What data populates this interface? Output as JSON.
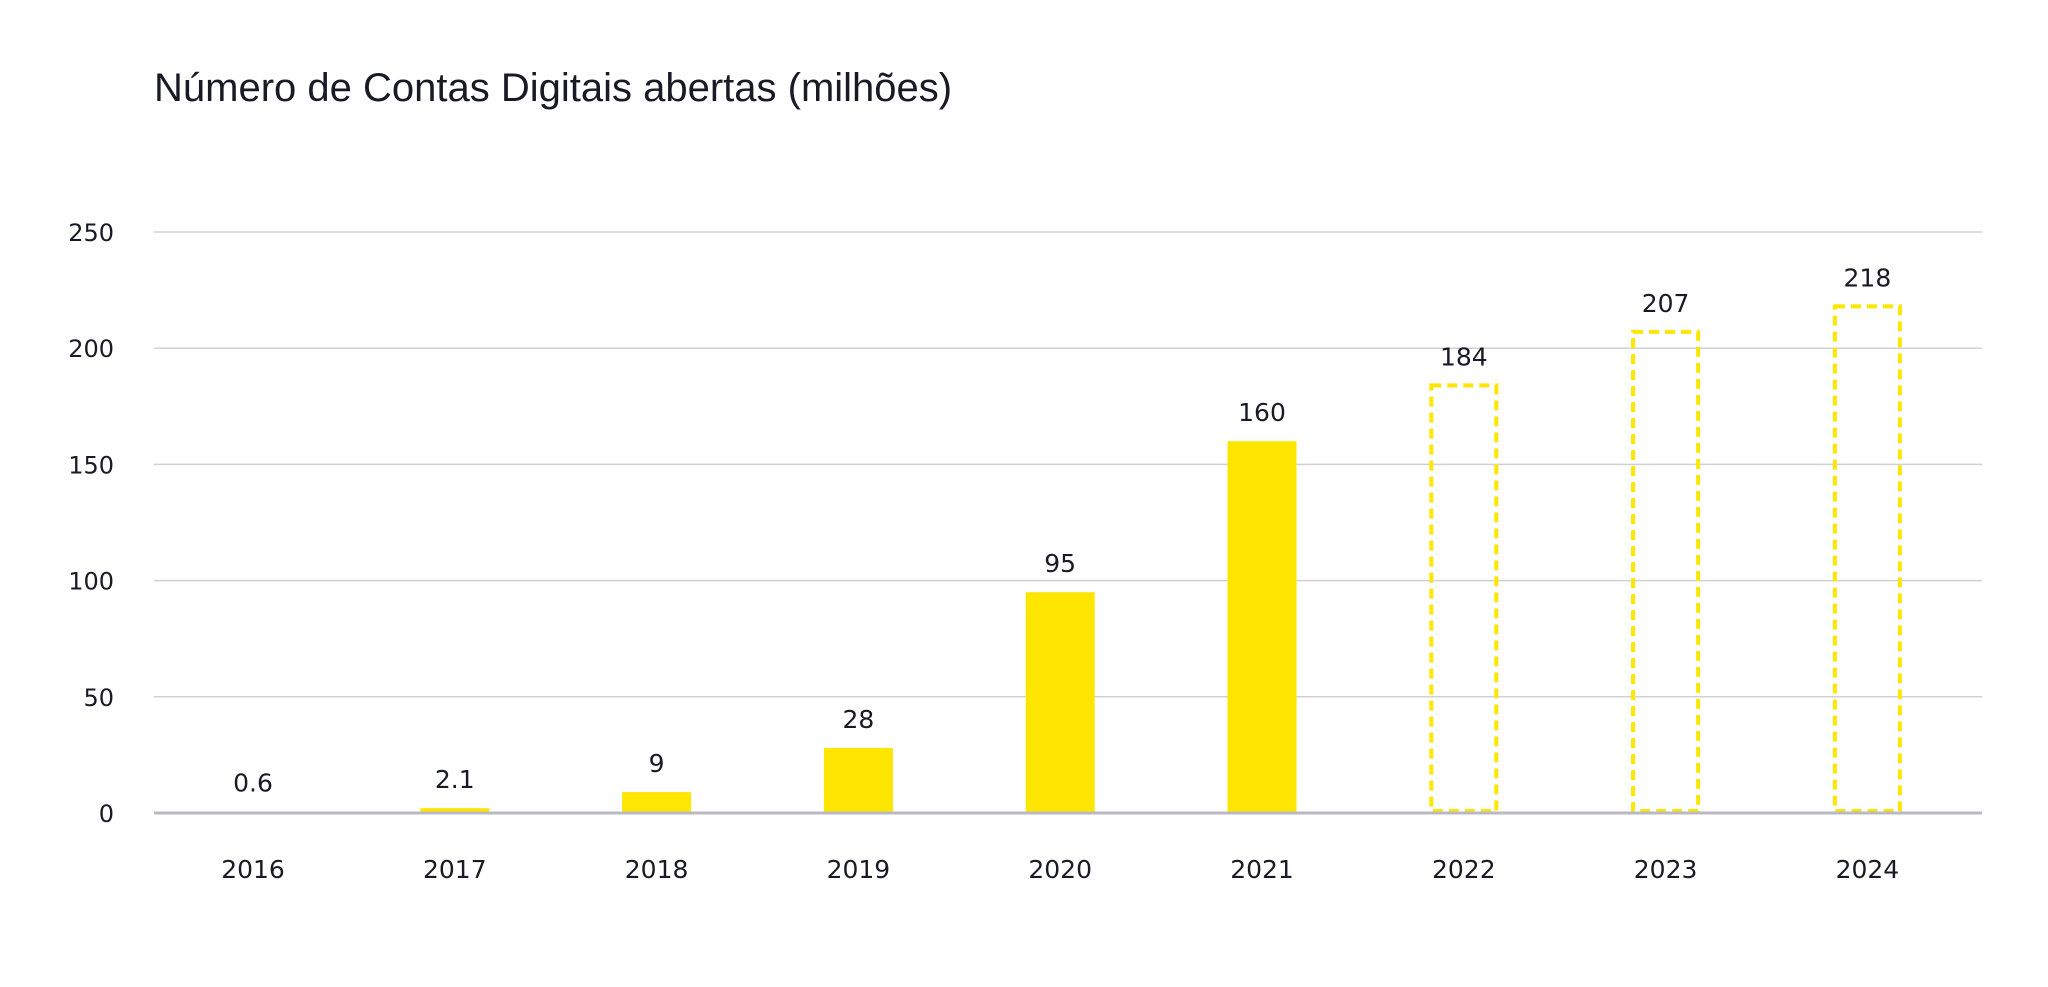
{
  "chart_data": {
    "type": "bar",
    "title": "Número de Contas Digitais abertas (milhões)",
    "categories": [
      "2016",
      "2017",
      "2018",
      "2019",
      "2020",
      "2021",
      "2022",
      "2023",
      "2024"
    ],
    "values": [
      0.6,
      2.1,
      9,
      28,
      95,
      160,
      184,
      207,
      218
    ],
    "value_labels": [
      "0.6",
      "2.1",
      "9",
      "28",
      "95",
      "160",
      "184",
      "207",
      "218"
    ],
    "projected": [
      false,
      false,
      false,
      false,
      false,
      false,
      true,
      true,
      true
    ],
    "ylim": [
      0,
      250
    ],
    "yticks": [
      0,
      50,
      100,
      150,
      200,
      250
    ],
    "xlabel": "",
    "ylabel": "",
    "grid": true,
    "bar_color": "#FFE600",
    "grid_color": "#D0D0D4",
    "axis_color": "#B9B9C4",
    "text_color": "#1A1A24"
  }
}
